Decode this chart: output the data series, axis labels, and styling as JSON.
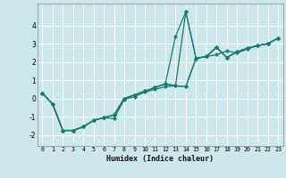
{
  "xlabel": "Humidex (Indice chaleur)",
  "bg_color": "#cde8ec",
  "grid_color": "#ffffff",
  "line_color": "#1a7a6e",
  "xlim": [
    -0.5,
    23.5
  ],
  "ylim": [
    -2.6,
    5.2
  ],
  "xticks": [
    0,
    1,
    2,
    3,
    4,
    5,
    6,
    7,
    8,
    9,
    10,
    11,
    12,
    13,
    14,
    15,
    16,
    17,
    18,
    19,
    20,
    21,
    22,
    23
  ],
  "yticks": [
    -2,
    -1,
    0,
    1,
    2,
    3,
    4
  ],
  "lines": [
    [
      0.3,
      -0.3,
      -1.75,
      -1.75,
      -1.55,
      -1.2,
      -1.05,
      -1.1,
      -0.05,
      0.1,
      0.35,
      0.5,
      0.65,
      0.7,
      4.75,
      2.2,
      2.3,
      2.8,
      2.25,
      2.55,
      2.75,
      2.9,
      3.0,
      3.3
    ],
    [
      0.3,
      -0.3,
      -1.75,
      -1.75,
      -1.55,
      -1.2,
      -1.05,
      -0.9,
      0.0,
      0.2,
      0.4,
      0.6,
      0.8,
      3.4,
      4.75,
      2.2,
      2.3,
      2.8,
      2.25,
      2.55,
      2.75,
      2.9,
      3.0,
      3.3
    ],
    [
      0.3,
      -0.3,
      -1.75,
      -1.75,
      -1.55,
      -1.2,
      -1.05,
      -0.9,
      0.0,
      0.2,
      0.4,
      0.6,
      0.8,
      0.7,
      0.65,
      2.2,
      2.3,
      2.8,
      2.25,
      2.55,
      2.75,
      2.9,
      3.0,
      3.3
    ],
    [
      0.3,
      -0.3,
      -1.75,
      -1.75,
      -1.55,
      -1.2,
      -1.05,
      -0.9,
      0.0,
      0.2,
      0.4,
      0.6,
      0.8,
      0.7,
      0.65,
      2.2,
      2.3,
      2.4,
      2.6,
      2.5,
      2.7,
      2.9,
      3.0,
      3.3
    ]
  ]
}
